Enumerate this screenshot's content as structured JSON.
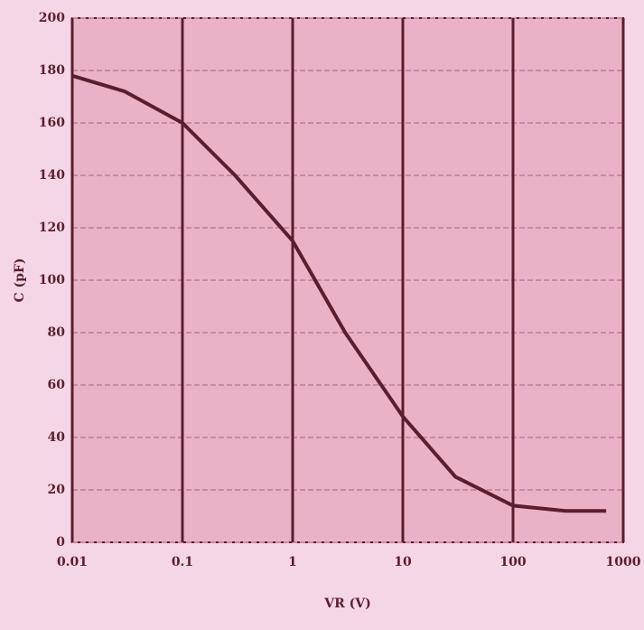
{
  "chart_data": {
    "type": "line",
    "x": [
      0.01,
      0.03,
      0.1,
      0.3,
      1,
      3,
      10,
      30,
      100,
      300,
      700
    ],
    "values": [
      178,
      172,
      160,
      140,
      115,
      80,
      48,
      25,
      14,
      12,
      12
    ],
    "color": "#5a1e2e",
    "xlabel": "VR (V)",
    "ylabel": "C (pF)",
    "log_x": true,
    "xlim": [
      0.01,
      1000
    ],
    "xticks": [
      0.01,
      0.1,
      1,
      10,
      100,
      1000
    ],
    "ylim": [
      0,
      200
    ],
    "yticks": [
      0,
      20,
      40,
      60,
      80,
      100,
      120,
      140,
      160,
      180,
      200
    ],
    "grid": true
  }
}
